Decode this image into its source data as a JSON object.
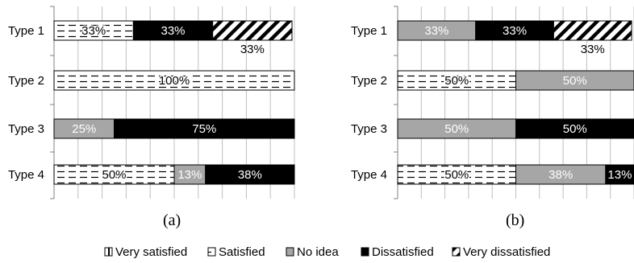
{
  "chart_data": [
    {
      "type": "bar",
      "stacked": "percent",
      "orientation": "horizontal",
      "caption": "(a)",
      "categories": [
        "Type 1",
        "Type 2",
        "Type 3",
        "Type 4"
      ],
      "series": [
        {
          "name": "Very satisfied",
          "values": [
            0,
            0,
            0,
            0
          ]
        },
        {
          "name": "Satisfied",
          "values": [
            33,
            100,
            0,
            50
          ]
        },
        {
          "name": "No idea",
          "values": [
            0,
            0,
            25,
            13
          ]
        },
        {
          "name": "Dissatisfied",
          "values": [
            33,
            0,
            75,
            38
          ]
        },
        {
          "name": "Very dissatisfied",
          "values": [
            33,
            0,
            0,
            0
          ]
        }
      ],
      "data_labels": [
        [
          "",
          "33%",
          "",
          "33%",
          "33%"
        ],
        [
          "",
          "100%",
          "",
          "",
          ""
        ],
        [
          "",
          "",
          "25%",
          "75%",
          ""
        ],
        [
          "",
          "50%",
          "13%",
          "38%",
          ""
        ]
      ],
      "xlim": [
        0,
        100
      ],
      "grid": true
    },
    {
      "type": "bar",
      "stacked": "percent",
      "orientation": "horizontal",
      "caption": "(b)",
      "categories": [
        "Type 1",
        "Type 2",
        "Type 3",
        "Type 4"
      ],
      "series": [
        {
          "name": "Very satisfied",
          "values": [
            0,
            0,
            0,
            0
          ]
        },
        {
          "name": "Satisfied",
          "values": [
            0,
            50,
            0,
            50
          ]
        },
        {
          "name": "No idea",
          "values": [
            33,
            50,
            50,
            38
          ]
        },
        {
          "name": "Dissatisfied",
          "values": [
            33,
            0,
            50,
            13
          ]
        },
        {
          "name": "Very dissatisfied",
          "values": [
            33,
            0,
            0,
            0
          ]
        }
      ],
      "data_labels": [
        [
          "",
          "",
          "33%",
          "33%",
          "33%"
        ],
        [
          "",
          "50%",
          "50%",
          "",
          ""
        ],
        [
          "",
          "",
          "50%",
          "50%",
          ""
        ],
        [
          "",
          "50%",
          "38%",
          "13%",
          ""
        ]
      ],
      "xlim": [
        0,
        100
      ],
      "grid": true
    }
  ],
  "legend": {
    "placement": "bottom",
    "items": [
      "Very satisfied",
      "Satisfied",
      "No idea",
      "Dissatisfied",
      "Very dissatisfied"
    ]
  },
  "colors": {
    "no_idea": "#a6a6a6",
    "dissatisfied": "#000000",
    "grid": "#bfbfbf",
    "label_light": "#ffffff",
    "label_dark": "#000000"
  }
}
